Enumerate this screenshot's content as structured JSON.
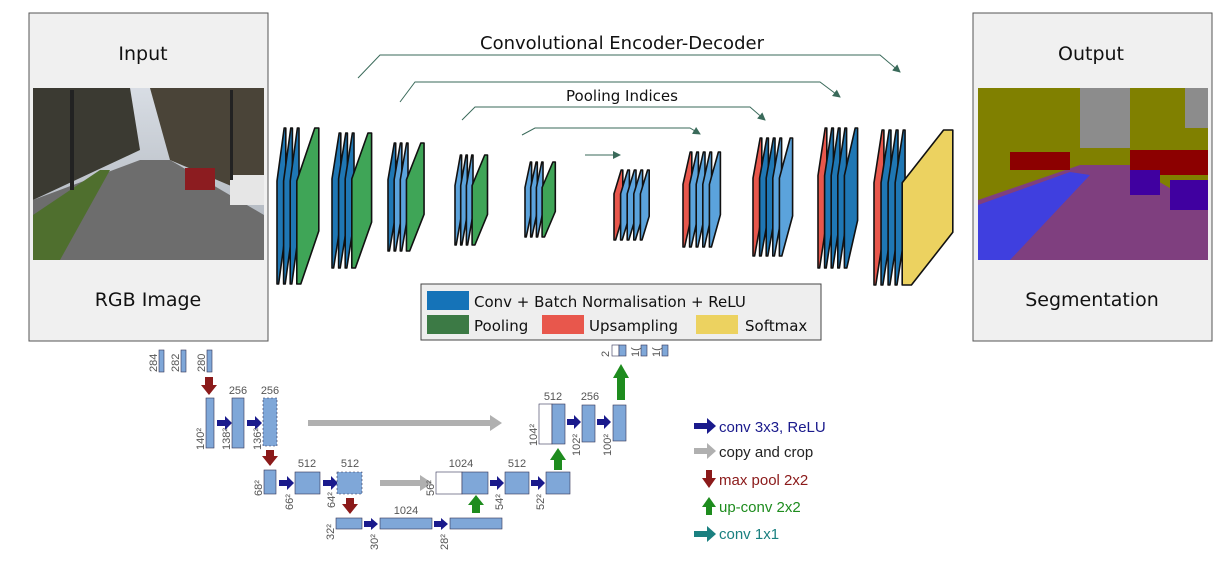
{
  "segnet": {
    "title": "Convolutional Encoder-Decoder",
    "pooling_indices_label": "Pooling Indices",
    "input_panel": {
      "title": "Input",
      "caption": "RGB Image"
    },
    "output_panel": {
      "title": "Output",
      "caption": "Segmentation"
    },
    "legend": {
      "conv": "Conv + Batch Normalisation + ReLU",
      "pooling": "Pooling",
      "upsampling": "Upsampling",
      "softmax": "Softmax"
    },
    "colors": {
      "conv": "#1f77b4",
      "pooling": "#3fa557",
      "upsampling": "#e8574c",
      "softmax": "#ecd260"
    }
  },
  "unet": {
    "labels": {
      "l1_ch": [
        "284",
        "282",
        "280"
      ],
      "l2_top": [
        "256",
        "256"
      ],
      "l2_side": [
        "140²",
        "138²",
        "136²"
      ],
      "l3_top": [
        "512",
        "512"
      ],
      "l3_side": [
        "68²",
        "66²",
        "64²"
      ],
      "l4_top": [
        "1024"
      ],
      "l4_side": [
        "32²",
        "30²",
        "28²"
      ],
      "u3_top": [
        "1024",
        "512"
      ],
      "u3_side": [
        "56²",
        "54²",
        "52²"
      ],
      "u2_top": [
        "512",
        "256"
      ],
      "u2_side": [
        "104²",
        "102²",
        "100²"
      ],
      "u1_side": [
        "2",
        "1(",
        "1("
      ]
    },
    "legend": {
      "conv": "conv 3x3, ReLU",
      "copy": "copy and crop",
      "pool": "max pool 2x2",
      "upconv": "up-conv 2x2",
      "conv1x1": "conv 1x1"
    },
    "colors": {
      "block": "#7fa7d8",
      "conv_arrow": "#1a1a8c",
      "copy_arrow": "#b0b0b0",
      "pool_arrow": "#8b1a1a",
      "upconv_arrow": "#1e8c1e",
      "conv1x1_arrow": "#1a8080"
    }
  }
}
